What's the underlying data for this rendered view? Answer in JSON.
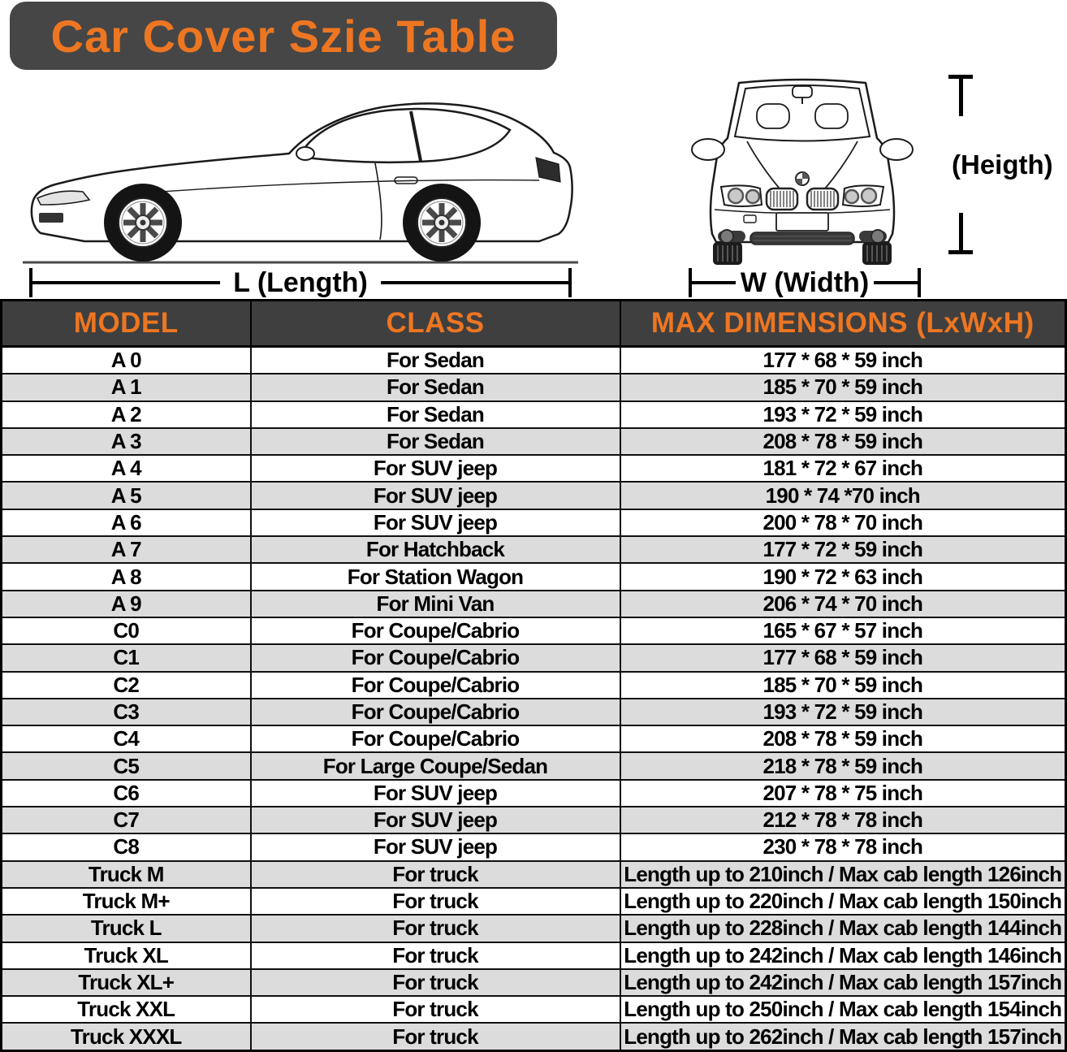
{
  "title": "Car Cover Szie Table",
  "diagram": {
    "length_label": "L (Length)",
    "width_label": "W (Width)",
    "height_label": "(Heigth)",
    "side_view_icon": "car-side-view-icon",
    "front_view_icon": "car-front-view-icon"
  },
  "table": {
    "headers": [
      "MODEL",
      "CLASS",
      "MAX DIMENSIONS (LxWxH)"
    ],
    "rows": [
      [
        "A 0",
        "For Sedan",
        "177 * 68 * 59 inch"
      ],
      [
        "A 1",
        "For Sedan",
        "185 * 70 * 59 inch"
      ],
      [
        "A 2",
        "For Sedan",
        "193 * 72 * 59 inch"
      ],
      [
        "A 3",
        "For Sedan",
        "208 * 78 * 59 inch"
      ],
      [
        "A 4",
        "For SUV jeep",
        "181 * 72 * 67 inch"
      ],
      [
        "A 5",
        "For SUV jeep",
        "190 * 74 *70 inch"
      ],
      [
        "A 6",
        "For SUV jeep",
        "200 * 78 * 70 inch"
      ],
      [
        "A 7",
        "For Hatchback",
        "177 * 72 * 59 inch"
      ],
      [
        "A 8",
        "For Station Wagon",
        "190 * 72 * 63 inch"
      ],
      [
        "A 9",
        "For Mini Van",
        "206 * 74 * 70 inch"
      ],
      [
        "C0",
        "For Coupe/Cabrio",
        "165 * 67 * 57 inch"
      ],
      [
        "C1",
        "For Coupe/Cabrio",
        "177 * 68 * 59 inch"
      ],
      [
        "C2",
        "For Coupe/Cabrio",
        "185 * 70 * 59 inch"
      ],
      [
        "C3",
        "For Coupe/Cabrio",
        "193 * 72 * 59 inch"
      ],
      [
        "C4",
        "For Coupe/Cabrio",
        "208 * 78 * 59 inch"
      ],
      [
        "C5",
        "For Large Coupe/Sedan",
        "218 * 78 * 59 inch"
      ],
      [
        "C6",
        "For SUV jeep",
        "207 * 78 * 75 inch"
      ],
      [
        "C7",
        "For SUV jeep",
        "212 * 78 * 78 inch"
      ],
      [
        "C8",
        "For SUV jeep",
        "230 * 78 * 78 inch"
      ],
      [
        "Truck M",
        "For truck",
        "Length up to 210inch / Max cab length 126inch"
      ],
      [
        "Truck M+",
        "For truck",
        "Length up to 220inch / Max cab length 150inch"
      ],
      [
        "Truck L",
        "For truck",
        "Length up to 228inch / Max cab length 144inch"
      ],
      [
        "Truck XL",
        "For truck",
        "Length up to 242inch / Max cab length 146inch"
      ],
      [
        "Truck XL+",
        "For truck",
        "Length up to 242inch / Max cab length 157inch"
      ],
      [
        "Truck XXL",
        "For truck",
        "Length up to 250inch / Max cab length 154inch"
      ],
      [
        "Truck XXXL",
        "For truck",
        "Length up to 262inch / Max cab length 157inch"
      ]
    ]
  },
  "colors": {
    "accent_orange": "#ED7622",
    "banner_bg": "#464646",
    "header_bg": "#3F3F3F",
    "row_alt_bg": "#DCDCDC"
  }
}
